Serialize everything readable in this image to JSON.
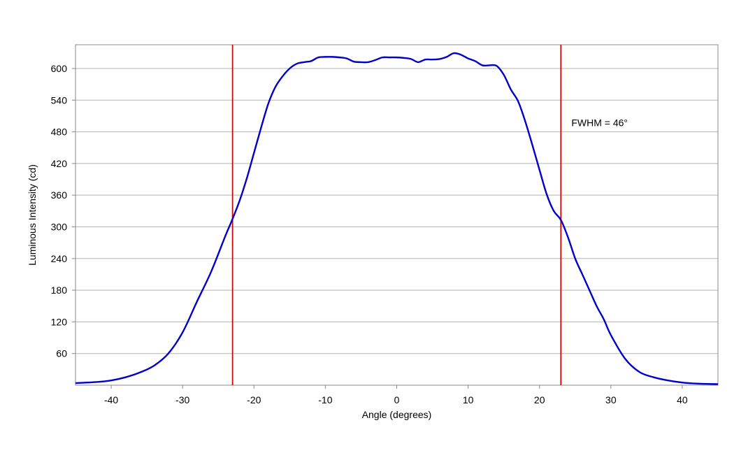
{
  "chart_data": {
    "type": "line",
    "xlabel": "Angle (degrees)",
    "ylabel": "Luminous Intensity (cd)",
    "xlim": [
      -45,
      45
    ],
    "ylim": [
      0,
      645
    ],
    "x_ticks": [
      -40,
      -30,
      -20,
      -10,
      0,
      10,
      20,
      30,
      40
    ],
    "y_ticks": [
      60,
      120,
      180,
      240,
      300,
      360,
      420,
      480,
      540,
      600
    ],
    "grid": "horizontal",
    "series": [
      {
        "color": "#0000cc",
        "x": [
          -45,
          -42,
          -40,
          -38,
          -36,
          -34,
          -32,
          -30,
          -28,
          -26,
          -24,
          -23,
          -22,
          -21,
          -20,
          -19,
          -18,
          -17,
          -16,
          -15,
          -14,
          -13,
          -12,
          -11,
          -10,
          -9,
          -8,
          -7,
          -6,
          -5,
          -4,
          -3,
          -2,
          -1,
          0,
          1,
          2,
          3,
          4,
          5,
          6,
          7,
          8,
          9,
          10,
          11,
          12,
          13,
          14,
          15,
          16,
          17,
          18,
          19,
          20,
          21,
          22,
          23,
          24,
          25,
          26,
          27,
          28,
          29,
          30,
          32,
          34,
          36,
          38,
          40,
          42,
          45
        ],
        "y": [
          4,
          6,
          9,
          15,
          24,
          37,
          60,
          100,
          158,
          215,
          283,
          315,
          350,
          392,
          440,
          488,
          533,
          565,
          585,
          600,
          609,
          612,
          614,
          621,
          622,
          622,
          621,
          619,
          613,
          612,
          612,
          616,
          621,
          621,
          621,
          620,
          618,
          612,
          617,
          617,
          618,
          622,
          629,
          626,
          619,
          614,
          606,
          606,
          605,
          588,
          560,
          538,
          500,
          455,
          408,
          362,
          330,
          313,
          280,
          240,
          210,
          180,
          150,
          125,
          95,
          50,
          25,
          15,
          9,
          5,
          3,
          2
        ]
      }
    ],
    "reference_lines": [
      {
        "x": -23,
        "color": "#dd0000"
      },
      {
        "x": 23,
        "color": "#dd0000"
      }
    ],
    "annotation": "FWHM = 46°"
  }
}
